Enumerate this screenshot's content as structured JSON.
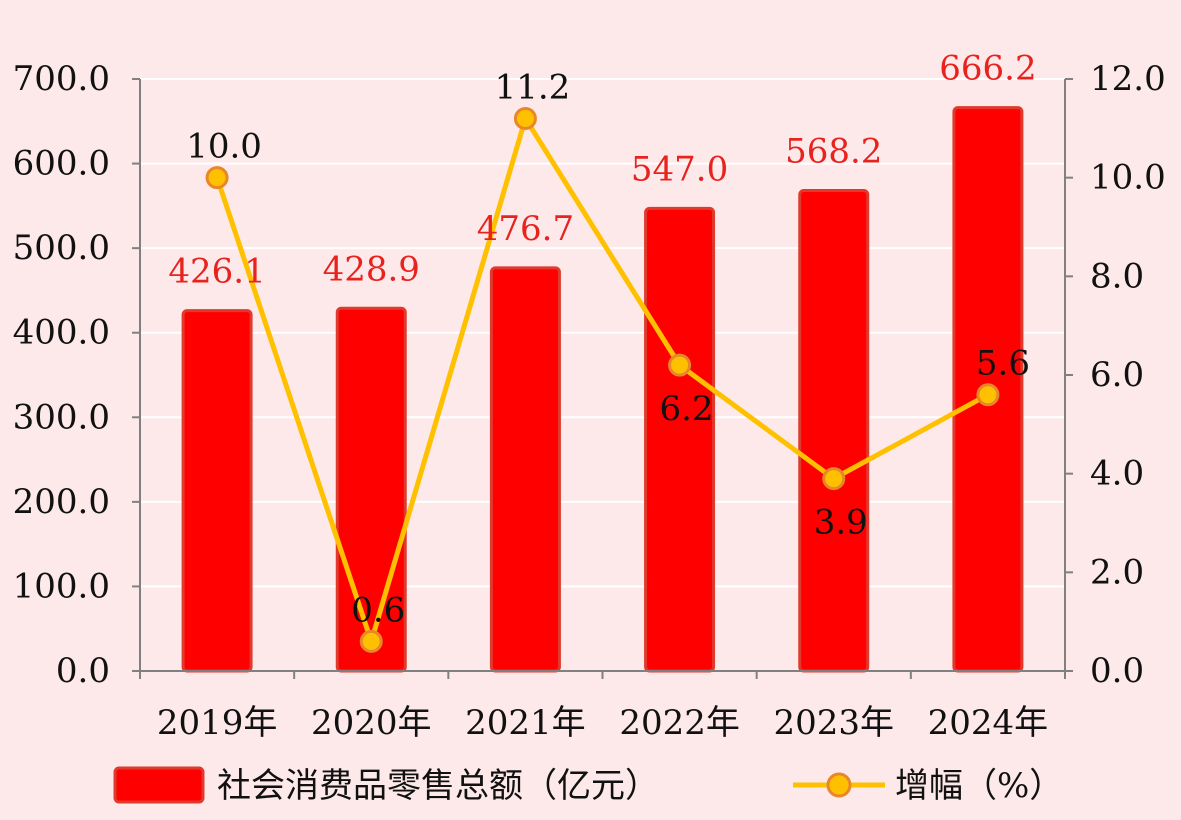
{
  "chart_data": {
    "type": "bar",
    "categories": [
      "2019年",
      "2020年",
      "2021年",
      "2022年",
      "2023年",
      "2024年"
    ],
    "series": [
      {
        "name": "社会消费品零售总额（亿元）",
        "type": "bar",
        "axis": "left",
        "values": [
          426.1,
          428.9,
          476.7,
          547.0,
          568.2,
          666.2
        ],
        "labels": [
          "426.1",
          "428.9",
          "476.7",
          "547.0",
          "568.2",
          "666.2"
        ],
        "color": "#ff0000"
      },
      {
        "name": "增幅（%）",
        "type": "line",
        "axis": "right",
        "values": [
          10.0,
          0.6,
          11.2,
          6.2,
          3.9,
          5.6
        ],
        "labels": [
          "10.0",
          "0.6",
          "11.2",
          "6.2",
          "3.9",
          "5.6"
        ],
        "color": "#ffc000"
      }
    ],
    "y_left": {
      "range": [
        0,
        700
      ],
      "ticks": [
        "0.0",
        "100.0",
        "200.0",
        "300.0",
        "400.0",
        "500.0",
        "600.0",
        "700.0"
      ]
    },
    "y_right": {
      "range": [
        0,
        12
      ],
      "ticks": [
        "0.0",
        "2.0",
        "4.0",
        "6.0",
        "8.0",
        "10.0",
        "12.0"
      ]
    },
    "grid": true,
    "legend": "bottom",
    "colors": {
      "background": "#fde9ea",
      "bar": "#ff0000",
      "bar_edge": "#e03a2e",
      "line": "#ffc000",
      "marker_fill": "#ffc000",
      "marker_edge": "#e8862a",
      "bar_label": "#e8231e",
      "axis": "#808080",
      "grid": "#ffffff"
    }
  }
}
